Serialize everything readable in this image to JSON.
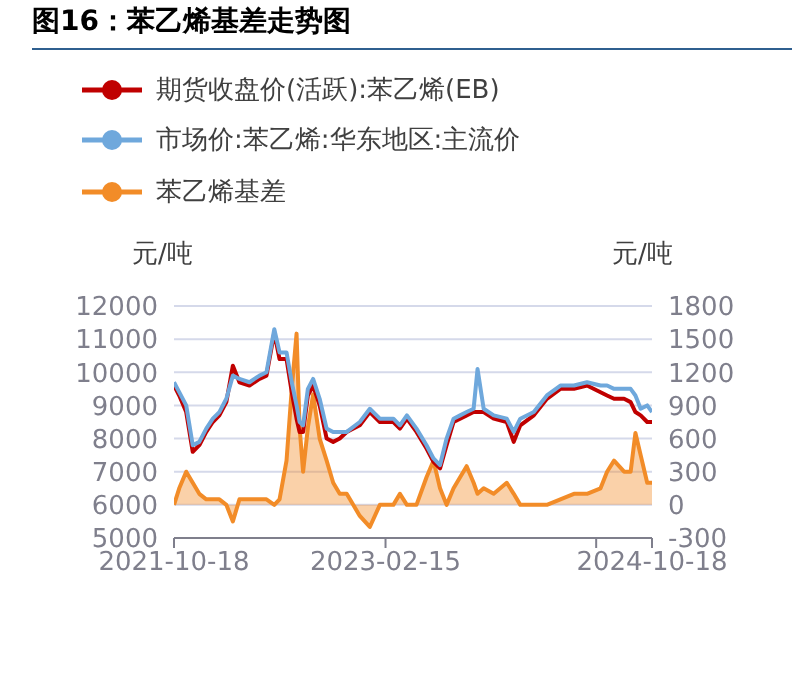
{
  "chart_data": {
    "type": "line",
    "title": "图16：苯乙烯基差走势图",
    "ylabel": "元/吨",
    "y2label": "元/吨",
    "x": [
      "2021-10-18",
      "2021-10-30",
      "2021-11-15",
      "2021-11-30",
      "2021-12-15",
      "2021-12-31",
      "2022-01-15",
      "2022-01-30",
      "2022-02-15",
      "2022-03-02",
      "2022-03-17",
      "2022-04-09",
      "2022-05-02",
      "2022-05-18",
      "2022-06-05",
      "2022-06-17",
      "2022-07-03",
      "2022-07-15",
      "2022-07-26",
      "2022-08-02",
      "2022-08-10",
      "2022-08-21",
      "2022-09-02",
      "2022-09-17",
      "2022-10-03",
      "2022-10-18",
      "2022-11-02",
      "2022-11-18",
      "2022-12-18",
      "2023-01-10",
      "2023-02-02",
      "2023-03-05",
      "2023-03-20",
      "2023-04-05",
      "2023-04-27",
      "2023-05-20",
      "2023-06-05",
      "2023-06-20",
      "2023-07-05",
      "2023-07-21",
      "2023-08-05",
      "2023-08-20",
      "2023-09-05",
      "2023-09-14",
      "2023-09-28",
      "2023-10-21",
      "2023-11-20",
      "2023-12-06",
      "2023-12-21",
      "2024-01-21",
      "2024-02-20",
      "2024-03-22",
      "2024-04-22",
      "2024-05-22",
      "2024-06-22",
      "2024-07-07",
      "2024-07-23",
      "2024-08-15",
      "2024-08-30",
      "2024-09-10",
      "2024-09-22",
      "2024-10-07",
      "2024-10-18"
    ],
    "series": [
      {
        "name": "期货收盘价(活跃):苯乙烯(EB)",
        "type": "line",
        "color": "#c00000",
        "values": [
          9600,
          9300,
          8800,
          7600,
          7800,
          8200,
          8500,
          8700,
          9100,
          10200,
          9700,
          9600,
          9800,
          9900,
          11200,
          10400,
          10400,
          9400,
          8600,
          8200,
          8200,
          9300,
          9600,
          9000,
          8000,
          7900,
          8000,
          8200,
          8400,
          8800,
          8500,
          8500,
          8300,
          8600,
          8200,
          7700,
          7300,
          7100,
          7800,
          8500,
          8600,
          8700,
          8800,
          null,
          8800,
          8600,
          8500,
          7900,
          8400,
          8700,
          9200,
          9500,
          9500,
          9600,
          9400,
          9300,
          9200,
          9200,
          9100,
          8800,
          8700,
          8500,
          8500
        ]
      },
      {
        "name": "市场价:苯乙烯:华东地区:主流价",
        "type": "line",
        "color": "#6fa8dc",
        "values": [
          9700,
          9400,
          9000,
          7800,
          7900,
          8300,
          8600,
          8800,
          9200,
          9900,
          9800,
          9700,
          9900,
          10000,
          11300,
          10600,
          10600,
          9700,
          9000,
          8500,
          8400,
          9500,
          9800,
          9200,
          8300,
          8200,
          8200,
          8200,
          8500,
          8900,
          8600,
          8600,
          8400,
          8700,
          8300,
          7800,
          7400,
          7200,
          8000,
          8600,
          8700,
          8800,
          8900,
          10100,
          8900,
          8700,
          8600,
          8200,
          8600,
          8800,
          9300,
          9600,
          9600,
          9700,
          9600,
          9600,
          9500,
          9500,
          9500,
          9300,
          8900,
          9000,
          8800
        ]
      },
      {
        "name": "苯乙烯基差",
        "type": "area",
        "axis": "y2",
        "color": "#f28c28",
        "values": [
          0,
          150,
          300,
          200,
          100,
          50,
          50,
          50,
          0,
          -150,
          50,
          50,
          50,
          50,
          0,
          50,
          400,
          1050,
          1550,
          700,
          300,
          700,
          1000,
          600,
          400,
          200,
          100,
          100,
          -100,
          -200,
          0,
          0,
          100,
          0,
          0,
          250,
          400,
          150,
          0,
          150,
          250,
          350,
          200,
          100,
          150,
          100,
          200,
          100,
          0,
          0,
          0,
          50,
          100,
          100,
          150,
          300,
          400,
          300,
          300,
          650,
          450,
          200,
          200
        ]
      }
    ],
    "xlim": [
      "2021-10-18",
      "2024-10-18"
    ],
    "xticks": [
      "2021-10-18",
      "2023-02-15",
      {
        "value": "2024-06-12",
        "label": null
      },
      "2024-10-18"
    ],
    "ylim": [
      5000,
      12000
    ],
    "yticks": [
      5000,
      6000,
      7000,
      8000,
      9000,
      10000,
      11000,
      12000
    ],
    "y2lim": [
      -300,
      1800
    ],
    "y2ticks": [
      -300,
      0,
      300,
      600,
      900,
      1200,
      1500,
      1800
    ],
    "grid": "y",
    "legend": "top",
    "marker": "none",
    "line_style": "solid"
  }
}
